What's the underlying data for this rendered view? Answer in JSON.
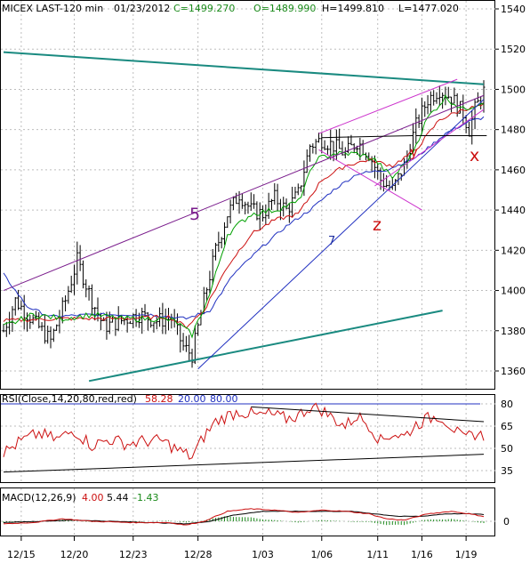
{
  "chart_data": [
    {
      "type": "candlestick",
      "header": {
        "symbol": "MICEX LAST-120 min",
        "date": "01/23/2012",
        "close": "C=1499.270",
        "open": "O=1489.990",
        "high": "H=1499.810",
        "low": "L=1477.020"
      },
      "y_ticks": [
        1360,
        1380,
        1400,
        1420,
        1440,
        1460,
        1480,
        1500,
        1520,
        1540
      ],
      "ylim": [
        1350,
        1545
      ],
      "x_ticks": [
        "12/15",
        "12/20",
        "12/23",
        "12/28",
        "1/03",
        "1/06",
        "1/11",
        "1/16",
        "1/19"
      ],
      "annotations": [
        {
          "text": "5",
          "color": "#7a1c8c"
        },
        {
          "text": "7",
          "color": "#2030a0"
        },
        {
          "text": "y",
          "color": "#cc1010"
        },
        {
          "text": "z",
          "color": "#cc1010"
        },
        {
          "text": "x",
          "color": "#cc1010"
        }
      ],
      "colors": {
        "price": "#000000",
        "ma_fast": "#00a000",
        "ma_mid": "#cc1010",
        "ma_slow": "#2030c0",
        "trend_teal": "#1a8a80",
        "channel_magenta": "#cc33cc",
        "channel_purple": "#7a1c8c"
      },
      "price_anchor": [
        [
          0,
          1380
        ],
        [
          4,
          1395
        ],
        [
          10,
          1385
        ],
        [
          16,
          1375
        ],
        [
          21,
          1395
        ],
        [
          25,
          1415
        ],
        [
          30,
          1395
        ],
        [
          34,
          1382
        ],
        [
          40,
          1385
        ],
        [
          46,
          1388
        ],
        [
          52,
          1385
        ],
        [
          57,
          1386
        ],
        [
          61,
          1372
        ],
        [
          64,
          1368
        ],
        [
          68,
          1395
        ],
        [
          72,
          1420
        ],
        [
          76,
          1438
        ],
        [
          80,
          1448
        ],
        [
          84,
          1440
        ],
        [
          88,
          1438
        ],
        [
          92,
          1446
        ],
        [
          96,
          1440
        ],
        [
          100,
          1448
        ],
        [
          104,
          1472
        ],
        [
          108,
          1475
        ],
        [
          112,
          1472
        ],
        [
          116,
          1468
        ],
        [
          120,
          1474
        ],
        [
          124,
          1468
        ],
        [
          128,
          1455
        ],
        [
          132,
          1450
        ],
        [
          136,
          1462
        ],
        [
          140,
          1482
        ],
        [
          144,
          1495
        ],
        [
          148,
          1500
        ],
        [
          152,
          1496
        ],
        [
          156,
          1488
        ],
        [
          158,
          1480
        ],
        [
          160,
          1490
        ],
        [
          163,
          1499
        ]
      ],
      "ma_fast_anchor": [
        [
          0,
          1382
        ],
        [
          10,
          1388
        ],
        [
          20,
          1386
        ],
        [
          30,
          1388
        ],
        [
          40,
          1386
        ],
        [
          52,
          1386
        ],
        [
          58,
          1385
        ],
        [
          64,
          1378
        ],
        [
          70,
          1398
        ],
        [
          76,
          1428
        ],
        [
          84,
          1438
        ],
        [
          92,
          1440
        ],
        [
          100,
          1444
        ],
        [
          106,
          1465
        ],
        [
          112,
          1468
        ],
        [
          120,
          1468
        ],
        [
          126,
          1465
        ],
        [
          132,
          1456
        ],
        [
          138,
          1466
        ],
        [
          144,
          1486
        ],
        [
          150,
          1496
        ],
        [
          156,
          1490
        ],
        [
          163,
          1494
        ]
      ],
      "ma_mid_anchor": [
        [
          0,
          1385
        ],
        [
          20,
          1386
        ],
        [
          40,
          1386
        ],
        [
          56,
          1387
        ],
        [
          62,
          1382
        ],
        [
          68,
          1390
        ],
        [
          76,
          1412
        ],
        [
          84,
          1428
        ],
        [
          92,
          1435
        ],
        [
          100,
          1438
        ],
        [
          108,
          1455
        ],
        [
          116,
          1462
        ],
        [
          124,
          1465
        ],
        [
          132,
          1462
        ],
        [
          140,
          1470
        ],
        [
          148,
          1485
        ],
        [
          156,
          1490
        ],
        [
          163,
          1492
        ]
      ],
      "ma_slow_anchor": [
        [
          0,
          1408
        ],
        [
          8,
          1392
        ],
        [
          16,
          1387
        ],
        [
          30,
          1388
        ],
        [
          50,
          1388
        ],
        [
          62,
          1386
        ],
        [
          70,
          1390
        ],
        [
          78,
          1408
        ],
        [
          88,
          1422
        ],
        [
          96,
          1432
        ],
        [
          104,
          1440
        ],
        [
          112,
          1450
        ],
        [
          120,
          1458
        ],
        [
          130,
          1460
        ],
        [
          140,
          1466
        ],
        [
          150,
          1478
        ],
        [
          158,
          1484
        ],
        [
          163,
          1486
        ]
      ]
    },
    {
      "type": "line",
      "title": "RSI(Close,14,20,80,red,red)",
      "value": "58.28",
      "low_level": "20.00",
      "high_level": "80.00",
      "y_ticks": [
        35,
        50,
        65,
        80
      ],
      "ylim": [
        25,
        83
      ],
      "anchor": [
        [
          0,
          47
        ],
        [
          6,
          55
        ],
        [
          12,
          60
        ],
        [
          18,
          56
        ],
        [
          24,
          62
        ],
        [
          30,
          52
        ],
        [
          36,
          56
        ],
        [
          42,
          53
        ],
        [
          48,
          55
        ],
        [
          54,
          55
        ],
        [
          60,
          48
        ],
        [
          64,
          44
        ],
        [
          68,
          58
        ],
        [
          72,
          68
        ],
        [
          76,
          72
        ],
        [
          80,
          75
        ],
        [
          86,
          72
        ],
        [
          90,
          73
        ],
        [
          96,
          70
        ],
        [
          100,
          72
        ],
        [
          104,
          78
        ],
        [
          108,
          76
        ],
        [
          112,
          70
        ],
        [
          116,
          65
        ],
        [
          120,
          72
        ],
        [
          124,
          66
        ],
        [
          128,
          55
        ],
        [
          132,
          60
        ],
        [
          136,
          58
        ],
        [
          140,
          66
        ],
        [
          144,
          70
        ],
        [
          148,
          72
        ],
        [
          152,
          65
        ],
        [
          156,
          56
        ],
        [
          160,
          60
        ],
        [
          163,
          58
        ]
      ]
    },
    {
      "type": "line",
      "title": "MACD(12,26,9)",
      "macd_value": "4.00",
      "signal_value": "5.44",
      "histogram_value": "-1.43",
      "y_ticks": [
        0
      ],
      "ylim": [
        -10,
        18
      ],
      "macd_anchor": [
        [
          0,
          -2
        ],
        [
          10,
          -1
        ],
        [
          20,
          2
        ],
        [
          30,
          0
        ],
        [
          44,
          -1
        ],
        [
          56,
          -1
        ],
        [
          62,
          -3
        ],
        [
          68,
          0
        ],
        [
          76,
          8
        ],
        [
          84,
          10
        ],
        [
          92,
          9
        ],
        [
          100,
          7
        ],
        [
          108,
          9
        ],
        [
          116,
          8
        ],
        [
          124,
          6
        ],
        [
          130,
          2
        ],
        [
          136,
          1
        ],
        [
          144,
          6
        ],
        [
          152,
          8
        ],
        [
          158,
          6
        ],
        [
          163,
          4
        ]
      ],
      "signal_anchor": [
        [
          0,
          -1
        ],
        [
          12,
          0
        ],
        [
          24,
          1
        ],
        [
          36,
          0
        ],
        [
          50,
          -1
        ],
        [
          62,
          -2
        ],
        [
          70,
          0
        ],
        [
          78,
          5
        ],
        [
          88,
          8
        ],
        [
          98,
          8
        ],
        [
          108,
          8
        ],
        [
          118,
          8
        ],
        [
          126,
          6
        ],
        [
          134,
          4
        ],
        [
          142,
          4
        ],
        [
          150,
          6
        ],
        [
          158,
          6
        ],
        [
          163,
          5.44
        ]
      ]
    }
  ]
}
